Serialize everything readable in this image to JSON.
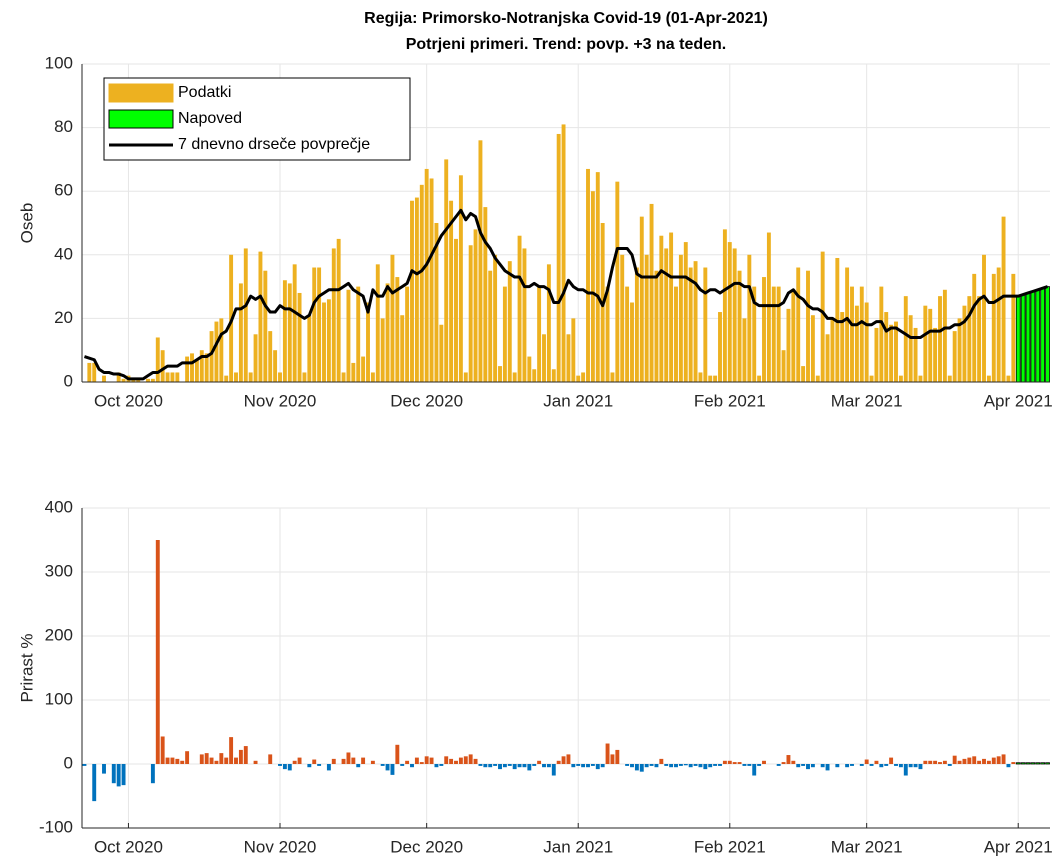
{
  "chart_data": [
    {
      "type": "bar",
      "title": "Regija: Primorsko-Notranjska Covid-19 (01-Apr-2021)",
      "subtitle": "Potrjeni primeri. Trend: povp. +3 na teden.",
      "ylabel": "Oseb",
      "xlim": [
        -0.5,
        197.5
      ],
      "xticks": [
        {
          "value": 9,
          "label": "Oct 2020"
        },
        {
          "value": 40,
          "label": "Nov 2020"
        },
        {
          "value": 70,
          "label": "Dec 2020"
        },
        {
          "value": 101,
          "label": "Jan 2021"
        },
        {
          "value": 132,
          "label": "Feb 2021"
        },
        {
          "value": 160,
          "label": "Mar 2021"
        },
        {
          "value": 191,
          "label": "Apr 2021"
        }
      ],
      "ylim": [
        0,
        100
      ],
      "yticks": [
        0,
        20,
        40,
        60,
        80,
        100
      ],
      "grid": true,
      "legend": "upper left",
      "series": [
        {
          "name": "Podatki",
          "color": "#EDB120",
          "values": [
            0,
            6,
            6,
            0,
            2,
            0,
            0,
            3,
            1,
            2,
            1,
            1,
            0,
            1,
            1,
            14,
            10,
            3,
            3,
            3,
            0,
            8,
            9,
            7,
            10,
            9,
            16,
            19,
            20,
            2,
            40,
            3,
            31,
            42,
            3,
            15,
            41,
            35,
            16,
            10,
            3,
            32,
            31,
            37,
            28,
            3,
            21,
            36,
            36,
            25,
            26,
            42,
            45,
            3,
            29,
            6,
            30,
            8,
            25,
            3,
            37,
            20,
            31,
            40,
            33,
            21,
            30,
            57,
            58,
            62,
            67,
            64,
            50,
            18,
            70,
            57,
            45,
            65,
            3,
            43,
            48,
            76,
            55,
            35,
            40,
            5,
            30,
            38,
            3,
            46,
            42,
            8,
            4,
            30,
            15,
            37,
            4,
            78,
            81,
            15,
            20,
            2,
            3,
            67,
            60,
            66,
            50,
            30,
            3,
            63,
            40,
            30,
            25,
            36,
            52,
            40,
            56,
            35,
            46,
            42,
            47,
            30,
            40,
            44,
            36,
            38,
            3,
            36,
            2,
            2,
            22,
            48,
            44,
            42,
            35,
            20,
            40,
            30,
            2,
            33,
            47,
            30,
            30,
            10,
            23,
            29,
            36,
            5,
            35,
            21,
            2,
            41,
            15,
            20,
            39,
            22,
            36,
            30,
            24,
            30,
            25,
            2,
            17,
            30,
            22,
            18,
            19,
            2,
            27,
            21,
            17,
            2,
            24,
            23,
            17,
            27,
            29,
            2,
            16,
            20,
            24,
            27,
            34,
            27,
            40,
            2,
            34,
            36,
            52,
            2,
            34,
            null,
            null,
            null,
            null,
            null,
            null,
            null
          ]
        },
        {
          "name": "Napoved",
          "color": "#00FF00",
          "edgecolor": "#000000",
          "values": [
            null,
            null,
            null,
            null,
            null,
            null,
            null,
            null,
            null,
            null,
            null,
            null,
            null,
            null,
            null,
            null,
            null,
            null,
            null,
            null,
            null,
            null,
            null,
            null,
            null,
            null,
            null,
            null,
            null,
            null,
            null,
            null,
            null,
            null,
            null,
            null,
            null,
            null,
            null,
            null,
            null,
            null,
            null,
            null,
            null,
            null,
            null,
            null,
            null,
            null,
            null,
            null,
            null,
            null,
            null,
            null,
            null,
            null,
            null,
            null,
            null,
            null,
            null,
            null,
            null,
            null,
            null,
            null,
            null,
            null,
            null,
            null,
            null,
            null,
            null,
            null,
            null,
            null,
            null,
            null,
            null,
            null,
            null,
            null,
            null,
            null,
            null,
            null,
            null,
            null,
            null,
            null,
            null,
            null,
            null,
            null,
            null,
            null,
            null,
            null,
            null,
            null,
            null,
            null,
            null,
            null,
            null,
            null,
            null,
            null,
            null,
            null,
            null,
            null,
            null,
            null,
            null,
            null,
            null,
            null,
            null,
            null,
            null,
            null,
            null,
            null,
            null,
            null,
            null,
            null,
            null,
            null,
            null,
            null,
            null,
            null,
            null,
            null,
            null,
            null,
            null,
            null,
            null,
            null,
            null,
            null,
            null,
            null,
            null,
            null,
            null,
            null,
            null,
            null,
            null,
            null,
            null,
            null,
            null,
            null,
            null,
            null,
            null,
            null,
            null,
            null,
            null,
            null,
            null,
            null,
            null,
            null,
            null,
            null,
            null,
            null,
            null,
            null,
            null,
            null,
            null,
            null,
            null,
            null,
            null,
            null,
            null,
            null,
            null,
            null,
            null,
            27,
            27.5,
            28,
            28.5,
            29,
            29.5,
            30
          ]
        },
        {
          "name": "7 dnevno drseče povprečje",
          "color": "#000000",
          "style": "line",
          "values": [
            8,
            7.5,
            7,
            4,
            3,
            3,
            2.5,
            2.5,
            2,
            1,
            1,
            1,
            1,
            2,
            3,
            3,
            4,
            5,
            5,
            5,
            6,
            6,
            6,
            7,
            8,
            8,
            9,
            12,
            15,
            16,
            19,
            23,
            23,
            24,
            27,
            26,
            27,
            24,
            22,
            22,
            24,
            23,
            23,
            22,
            21,
            20,
            21,
            25,
            27,
            28,
            29,
            29,
            29,
            30,
            31,
            29,
            28,
            27,
            22,
            29,
            27,
            27,
            30,
            28,
            29,
            30,
            31,
            35,
            34,
            35,
            37,
            40,
            43,
            46,
            48,
            50,
            52,
            54,
            51,
            53,
            52,
            47,
            44,
            42,
            39,
            37,
            35,
            34,
            33,
            33,
            30,
            30,
            31,
            30,
            30,
            29,
            25,
            25,
            28,
            32,
            30,
            29,
            29,
            28,
            28,
            27,
            24,
            29,
            36,
            42,
            42,
            42,
            40,
            34,
            33,
            33,
            33,
            33,
            35,
            34,
            33,
            33,
            33,
            33,
            32,
            31,
            29,
            28,
            29,
            29,
            28,
            29,
            30,
            31,
            31,
            30,
            30,
            25,
            24,
            24,
            24,
            24,
            24,
            25,
            28,
            29,
            27,
            26,
            24,
            23,
            23,
            22,
            20,
            20,
            19,
            19,
            20,
            18,
            18,
            19,
            18,
            18,
            19,
            19,
            16,
            17,
            17,
            16,
            15,
            14,
            14,
            14,
            15,
            16,
            16,
            16,
            17,
            17,
            18,
            18,
            19,
            21,
            24,
            26,
            27,
            25,
            25,
            26,
            27,
            27,
            27,
            27,
            27.5,
            28,
            28.5,
            29,
            29.5,
            30
          ]
        }
      ]
    },
    {
      "type": "bar",
      "ylabel": "Prirast %",
      "xlim": [
        -0.5,
        197.5
      ],
      "xticks": [
        {
          "value": 9,
          "label": "Oct 2020"
        },
        {
          "value": 40,
          "label": "Nov 2020"
        },
        {
          "value": 70,
          "label": "Dec 2020"
        },
        {
          "value": 101,
          "label": "Jan 2021"
        },
        {
          "value": 132,
          "label": "Feb 2021"
        },
        {
          "value": 160,
          "label": "Mar 2021"
        },
        {
          "value": 191,
          "label": "Apr 2021"
        }
      ],
      "ylim": [
        -100,
        400
      ],
      "yticks": [
        -100,
        0,
        100,
        200,
        300,
        400
      ],
      "grid": true,
      "series": [
        {
          "color_positive": "#D95319",
          "color_negative": "#0072BD",
          "values": [
            -3,
            0,
            -58,
            0,
            -15,
            0,
            -30,
            -35,
            -33,
            0,
            0,
            0,
            0,
            0,
            -30,
            350,
            43,
            10,
            10,
            8,
            5,
            20,
            0,
            0,
            15,
            17,
            10,
            5,
            17,
            10,
            42,
            10,
            22,
            28,
            0,
            5,
            0,
            0,
            15,
            0,
            -3,
            -8,
            -10,
            5,
            10,
            0,
            -5,
            7,
            -3,
            0,
            -10,
            8,
            0,
            8,
            18,
            10,
            -5,
            10,
            0,
            5,
            0,
            -3,
            -10,
            -17,
            30,
            -3,
            5,
            -5,
            10,
            3,
            12,
            10,
            -5,
            -3,
            12,
            8,
            5,
            10,
            12,
            15,
            8,
            -3,
            -5,
            -5,
            -3,
            -8,
            -5,
            -3,
            -8,
            -5,
            -5,
            -10,
            -3,
            5,
            -5,
            -5,
            -18,
            5,
            12,
            15,
            -5,
            -3,
            -5,
            -5,
            -3,
            -8,
            -5,
            32,
            15,
            22,
            0,
            -3,
            -5,
            -10,
            -12,
            -5,
            -3,
            -5,
            8,
            -3,
            -5,
            -5,
            -3,
            -2,
            -5,
            -3,
            -5,
            -8,
            -5,
            -3,
            -3,
            5,
            5,
            3,
            3,
            -3,
            -3,
            -18,
            -3,
            5,
            0,
            0,
            -3,
            3,
            14,
            5,
            -5,
            -3,
            -8,
            -5,
            0,
            -5,
            -10,
            0,
            -5,
            0,
            -5,
            -3,
            0,
            -3,
            7,
            -3,
            5,
            -5,
            -3,
            10,
            -3,
            -5,
            -18,
            -5,
            -5,
            -8,
            5,
            5,
            5,
            3,
            5,
            -3,
            13,
            5,
            8,
            10,
            12,
            5,
            8,
            5,
            10,
            12,
            15,
            -5,
            3,
            null,
            null,
            null,
            null,
            null,
            null,
            null
          ]
        },
        {
          "color": "#00FF00",
          "edgecolor": "#000000",
          "values": [
            null,
            null,
            null,
            null,
            null,
            null,
            null,
            null,
            null,
            null,
            null,
            null,
            null,
            null,
            null,
            null,
            null,
            null,
            null,
            null,
            null,
            null,
            null,
            null,
            null,
            null,
            null,
            null,
            null,
            null,
            null,
            null,
            null,
            null,
            null,
            null,
            null,
            null,
            null,
            null,
            null,
            null,
            null,
            null,
            null,
            null,
            null,
            null,
            null,
            null,
            null,
            null,
            null,
            null,
            null,
            null,
            null,
            null,
            null,
            null,
            null,
            null,
            null,
            null,
            null,
            null,
            null,
            null,
            null,
            null,
            null,
            null,
            null,
            null,
            null,
            null,
            null,
            null,
            null,
            null,
            null,
            null,
            null,
            null,
            null,
            null,
            null,
            null,
            null,
            null,
            null,
            null,
            null,
            null,
            null,
            null,
            null,
            null,
            null,
            null,
            null,
            null,
            null,
            null,
            null,
            null,
            null,
            null,
            null,
            null,
            null,
            null,
            null,
            null,
            null,
            null,
            null,
            null,
            null,
            null,
            null,
            null,
            null,
            null,
            null,
            null,
            null,
            null,
            null,
            null,
            null,
            null,
            null,
            null,
            null,
            null,
            null,
            null,
            null,
            null,
            null,
            null,
            null,
            null,
            null,
            null,
            null,
            null,
            null,
            null,
            null,
            null,
            null,
            null,
            null,
            null,
            null,
            null,
            null,
            null,
            null,
            null,
            null,
            null,
            null,
            null,
            null,
            null,
            null,
            null,
            null,
            null,
            null,
            null,
            null,
            null,
            null,
            null,
            null,
            null,
            null,
            null,
            null,
            null,
            null,
            null,
            null,
            null,
            null,
            null,
            null,
            2,
            2,
            2,
            2,
            2,
            2,
            2
          ]
        }
      ]
    }
  ]
}
